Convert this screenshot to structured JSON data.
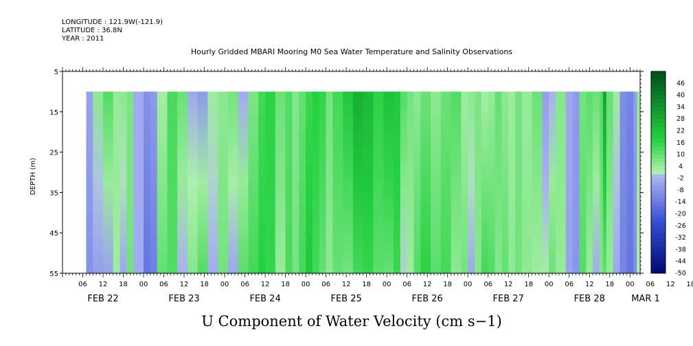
{
  "header": {
    "longitude": "LONGITUDE : 121.9W(-121.9)",
    "latitude": "LATITUDE : 36.8N",
    "year": "YEAR : 2011"
  },
  "chart_data": {
    "type": "heatmap",
    "title": "Hourly Gridded MBARI Mooring M0 Sea Water Temperature and Salinity Observations",
    "xlabel": "U Component of Water Velocity (cm s−1)",
    "ylabel": "DEPTH (m)",
    "y_ticks": [
      "5",
      "15",
      "25",
      "35",
      "45",
      "55"
    ],
    "ylim": [
      55,
      5
    ],
    "y_data_range_m": [
      10,
      55
    ],
    "x_hour_ticks": [
      "06",
      "12",
      "18",
      "00",
      "06",
      "12",
      "18",
      "00",
      "06",
      "12",
      "18",
      "00",
      "06",
      "12",
      "18",
      "00",
      "06",
      "12",
      "18",
      "00",
      "06",
      "12",
      "18",
      "00",
      "06",
      "12",
      "18",
      "00",
      "06",
      "12",
      "18",
      "00",
      "06"
    ],
    "x_date_labels": [
      {
        "label": "FEB 22",
        "hour": 12
      },
      {
        "label": "FEB 23",
        "hour": 36
      },
      {
        "label": "FEB 24",
        "hour": 60
      },
      {
        "label": "FEB 25",
        "hour": 84
      },
      {
        "label": "FEB 26",
        "hour": 108
      },
      {
        "label": "FEB 27",
        "hour": 132
      },
      {
        "label": "FEB 28",
        "hour": 156
      },
      {
        "label": "MAR 1",
        "hour": 171
      }
    ],
    "xlim_hours": [
      0,
      171
    ],
    "data_start_hour": 7,
    "colorbar": {
      "labels": [
        "46",
        "40",
        "34",
        "28",
        "22",
        "16",
        "10",
        "4",
        "-2",
        "-8",
        "-14",
        "-20",
        "-26",
        "-32",
        "-38",
        "-44",
        "-50"
      ],
      "range": [
        -50,
        52
      ],
      "colors": {
        "neg_dark": "#000a6e",
        "neg_mid": "#2f4cd3",
        "neg_light": "#aeb4f2",
        "pos_light": "#aef0ac",
        "pos_mid": "#22d13e",
        "pos_dark": "#004d19"
      }
    },
    "column_profile": [
      {
        "hour": 7,
        "top": -5,
        "bottom": -9
      },
      {
        "hour": 9,
        "top": 5,
        "bottom": -6
      },
      {
        "hour": 12,
        "top": 12,
        "bottom": -5
      },
      {
        "hour": 15,
        "top": 4,
        "bottom": 3
      },
      {
        "hour": 17,
        "top": 5,
        "bottom": -4
      },
      {
        "hour": 19,
        "top": 7,
        "bottom": 8
      },
      {
        "hour": 21,
        "top": -3,
        "bottom": -3
      },
      {
        "hour": 24,
        "top": -9,
        "bottom": -15
      },
      {
        "hour": 26,
        "top": -7,
        "bottom": -13
      },
      {
        "hour": 28,
        "top": 2,
        "bottom": 10
      },
      {
        "hour": 31,
        "top": 13,
        "bottom": 12
      },
      {
        "hour": 34,
        "top": 9,
        "bottom": -2
      },
      {
        "hour": 37,
        "top": -4,
        "bottom": 6
      },
      {
        "hour": 40,
        "top": -7,
        "bottom": 12
      },
      {
        "hour": 43,
        "top": 3,
        "bottom": -3
      },
      {
        "hour": 46,
        "top": 5,
        "bottom": 8
      },
      {
        "hour": 49,
        "top": 8,
        "bottom": -4
      },
      {
        "hour": 52,
        "top": -3,
        "bottom": 11
      },
      {
        "hour": 55,
        "top": 7,
        "bottom": 14
      },
      {
        "hour": 58,
        "top": 14,
        "bottom": 18
      },
      {
        "hour": 60,
        "top": 17,
        "bottom": 16
      },
      {
        "hour": 63,
        "top": 9,
        "bottom": 4
      },
      {
        "hour": 66,
        "top": 12,
        "bottom": 13
      },
      {
        "hour": 68,
        "top": 6,
        "bottom": 8
      },
      {
        "hour": 70,
        "top": 10,
        "bottom": 14
      },
      {
        "hour": 72,
        "top": 15,
        "bottom": 20
      },
      {
        "hour": 74,
        "top": 18,
        "bottom": 14
      },
      {
        "hour": 76,
        "top": 16,
        "bottom": 10
      },
      {
        "hour": 78,
        "top": 8,
        "bottom": 5
      },
      {
        "hour": 80,
        "top": 14,
        "bottom": 10
      },
      {
        "hour": 83,
        "top": 20,
        "bottom": 8
      },
      {
        "hour": 86,
        "top": 27,
        "bottom": 14
      },
      {
        "hour": 89,
        "top": 24,
        "bottom": 16
      },
      {
        "hour": 92,
        "top": 17,
        "bottom": 11
      },
      {
        "hour": 95,
        "top": 22,
        "bottom": 10
      },
      {
        "hour": 98,
        "top": 20,
        "bottom": 15
      },
      {
        "hour": 100,
        "top": 12,
        "bottom": 0
      },
      {
        "hour": 102,
        "top": 8,
        "bottom": 3
      },
      {
        "hour": 104,
        "top": 5,
        "bottom": 12
      },
      {
        "hour": 106,
        "top": 9,
        "bottom": 17
      },
      {
        "hour": 109,
        "top": 5,
        "bottom": 11
      },
      {
        "hour": 112,
        "top": 9,
        "bottom": 14
      },
      {
        "hour": 115,
        "top": 12,
        "bottom": 5
      },
      {
        "hour": 118,
        "top": 3,
        "bottom": 8
      },
      {
        "hour": 120,
        "top": 5,
        "bottom": -4
      },
      {
        "hour": 122,
        "top": 7,
        "bottom": 6
      },
      {
        "hour": 124,
        "top": 2,
        "bottom": 14
      },
      {
        "hour": 126,
        "top": 4,
        "bottom": 12
      },
      {
        "hour": 128,
        "top": 10,
        "bottom": 6
      },
      {
        "hour": 130,
        "top": 5,
        "bottom": 10
      },
      {
        "hour": 132,
        "top": 3,
        "bottom": 5
      },
      {
        "hour": 134,
        "top": 8,
        "bottom": 8
      },
      {
        "hour": 136,
        "top": 4,
        "bottom": 5
      },
      {
        "hour": 139,
        "top": 9,
        "bottom": 3
      },
      {
        "hour": 142,
        "top": -6,
        "bottom": 2
      },
      {
        "hour": 144,
        "top": -2,
        "bottom": 9
      },
      {
        "hour": 146,
        "top": 6,
        "bottom": 4
      },
      {
        "hour": 149,
        "top": -4,
        "bottom": -5
      },
      {
        "hour": 151,
        "top": -7,
        "bottom": -8
      },
      {
        "hour": 153,
        "top": 8,
        "bottom": 12
      },
      {
        "hour": 155,
        "top": 11,
        "bottom": 4
      },
      {
        "hour": 157,
        "top": 9,
        "bottom": -3
      },
      {
        "hour": 159,
        "top": 12,
        "bottom": 6
      },
      {
        "hour": 160,
        "top": 30,
        "bottom": 10
      },
      {
        "hour": 161,
        "top": 10,
        "bottom": 4
      },
      {
        "hour": 163,
        "top": 3,
        "bottom": -4
      },
      {
        "hour": 165,
        "top": -10,
        "bottom": -12
      },
      {
        "hour": 167,
        "top": -12,
        "bottom": -15
      },
      {
        "hour": 169,
        "top": -6,
        "bottom": -10
      },
      {
        "hour": 170,
        "top": 6,
        "bottom": 2
      }
    ]
  }
}
